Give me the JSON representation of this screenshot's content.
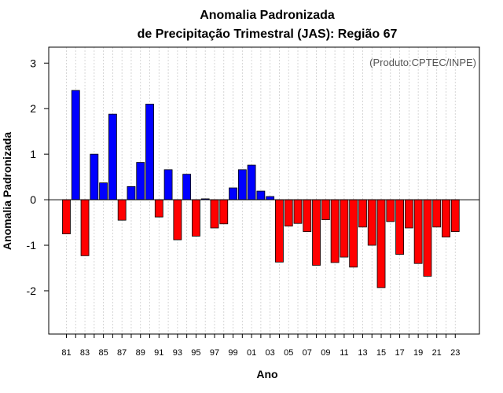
{
  "chart_data": {
    "type": "bar",
    "title_line1": "Anomalia Padronizada",
    "title_line2": "de Precipitação Trimestral (JAS): Região 67",
    "xlabel": "Ano",
    "ylabel": "Anomalia Padronizada",
    "credit": "(Produto:CPTEC/INPE)",
    "ylim": [
      -2.95,
      3.35
    ],
    "yticks": [
      -2,
      -1,
      0,
      1,
      2,
      3
    ],
    "ytick_labels": [
      "-2",
      "-1",
      "0",
      "1",
      "2",
      "3"
    ],
    "grid": "vertical dotted",
    "positive_color": "#0000ff",
    "negative_color": "#ff0000",
    "categories": [
      "81",
      "82",
      "83",
      "84",
      "85",
      "86",
      "87",
      "88",
      "89",
      "90",
      "91",
      "92",
      "93",
      "94",
      "95",
      "96",
      "97",
      "98",
      "99",
      "00",
      "01",
      "02",
      "03",
      "04",
      "05",
      "06",
      "07",
      "08",
      "09",
      "10",
      "11",
      "12",
      "13",
      "14",
      "15",
      "16",
      "17",
      "18",
      "19",
      "20",
      "21",
      "22",
      "23"
    ],
    "xtick_labels": [
      "81",
      "83",
      "85",
      "87",
      "89",
      "91",
      "93",
      "95",
      "97",
      "99",
      "01",
      "03",
      "05",
      "07",
      "09",
      "11",
      "13",
      "15",
      "17",
      "19",
      "21",
      "23"
    ],
    "values": [
      -0.75,
      2.4,
      -1.23,
      1.0,
      0.37,
      1.88,
      -0.45,
      0.29,
      0.82,
      2.1,
      -0.38,
      0.66,
      -0.88,
      0.56,
      -0.8,
      0.02,
      -0.62,
      -0.53,
      0.26,
      0.66,
      0.76,
      0.19,
      0.07,
      -1.37,
      -0.58,
      -0.52,
      -0.7,
      -1.44,
      -0.44,
      -1.38,
      -1.26,
      -1.48,
      -0.6,
      -1.0,
      -1.93,
      -0.48,
      -1.2,
      -0.62,
      -1.4,
      -1.68,
      -0.6,
      -0.82,
      -0.7
    ]
  }
}
